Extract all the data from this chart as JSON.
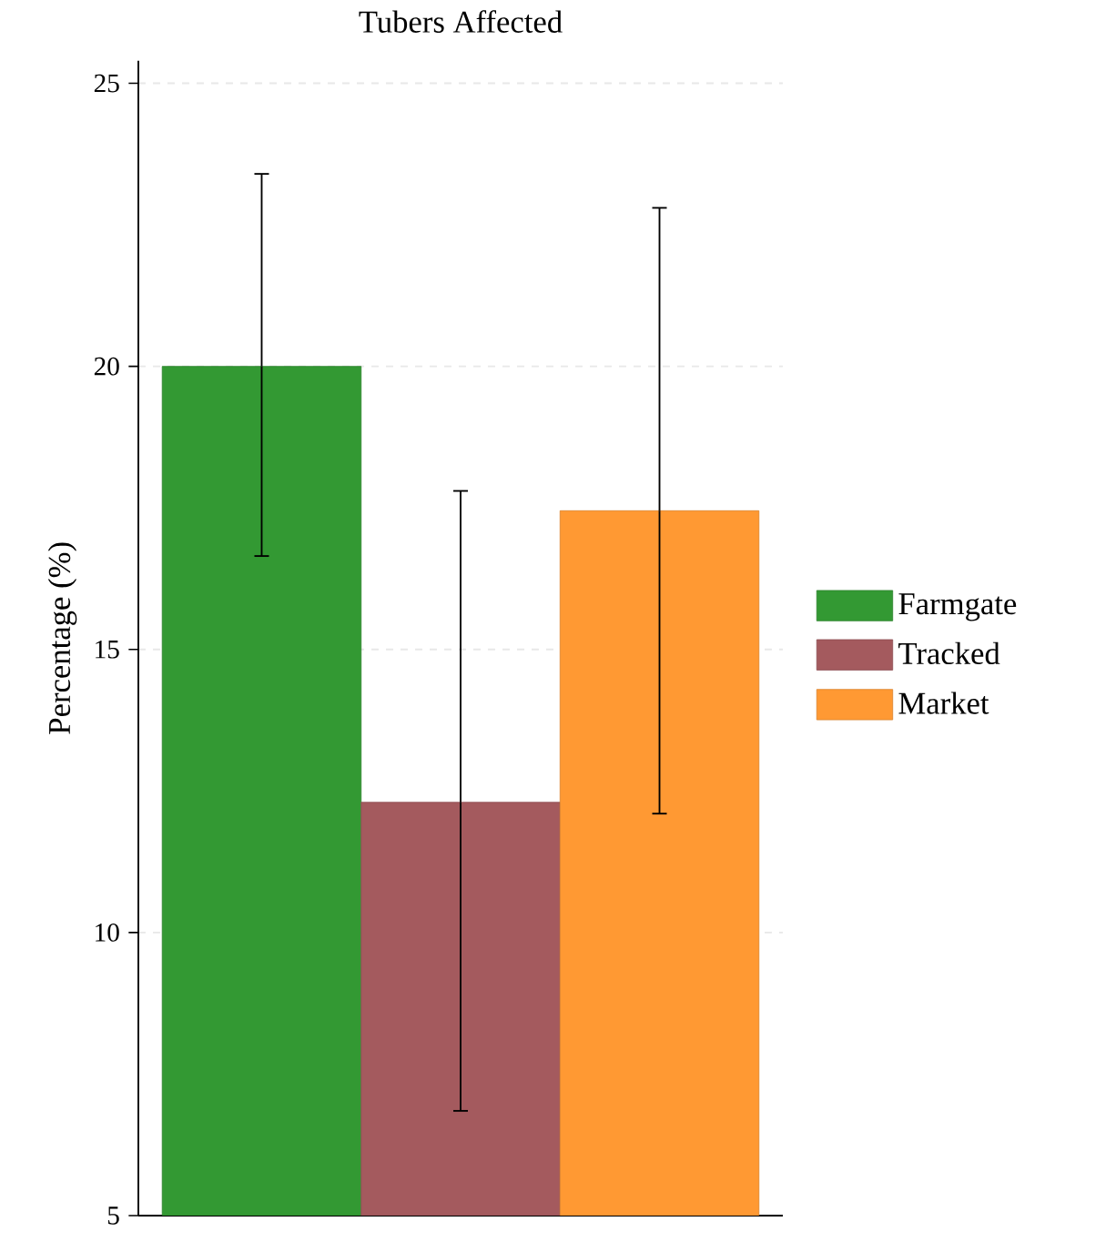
{
  "chart_data": {
    "type": "bar",
    "title": "Tubers Affected",
    "ylabel": "Percentage (%)",
    "categories": [
      null
    ],
    "series": [
      {
        "name": "Farmgate",
        "color": "#339933",
        "values": [
          20.0
        ],
        "errors": [
          [
            16.65,
            23.4
          ]
        ]
      },
      {
        "name": "Tracked",
        "color": "#a45a5e",
        "values": [
          12.3
        ],
        "errors": [
          [
            6.85,
            17.8
          ]
        ]
      },
      {
        "name": "Market",
        "color": "#ff9933",
        "values": [
          17.45
        ],
        "errors": [
          [
            12.1,
            22.8
          ]
        ]
      }
    ],
    "ylim": [
      5,
      25.4
    ],
    "yticks": [
      5,
      10,
      15,
      20,
      25
    ],
    "grid": "y",
    "legend": "right"
  }
}
